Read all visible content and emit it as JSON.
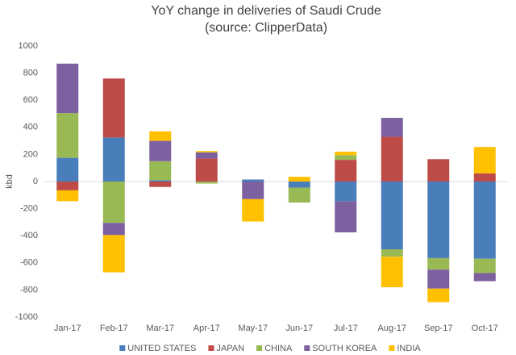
{
  "chart_data": {
    "type": "bar",
    "stacked": true,
    "title": "YoY change in deliveries of Saudi Crude",
    "subtitle": "(source: ClipperData)",
    "y_label": "kbd",
    "categories": [
      "Jan-17",
      "Feb-17",
      "Mar-17",
      "Apr-17",
      "May-17",
      "Jun-17",
      "Jul-17",
      "Aug-17",
      "Sep-17",
      "Oct-17"
    ],
    "series": [
      {
        "name": "UNITED STATES",
        "color": "#4a7ebb",
        "values": [
          175,
          325,
          10,
          0,
          15,
          -45,
          -145,
          -500,
          -565,
          -570
        ]
      },
      {
        "name": "JAPAN",
        "color": "#be4b48",
        "values": [
          -65,
          435,
          -40,
          170,
          0,
          0,
          160,
          330,
          165,
          60
        ]
      },
      {
        "name": "CHINA",
        "color": "#98b954",
        "values": [
          330,
          -305,
          140,
          -15,
          0,
          -110,
          35,
          -55,
          -85,
          -105
        ]
      },
      {
        "name": "SOUTH KOREA",
        "color": "#7d60a0",
        "values": [
          365,
          -90,
          150,
          45,
          -130,
          0,
          -230,
          140,
          -140,
          -60
        ]
      },
      {
        "name": "INDIA",
        "color": "#ffc000",
        "values": [
          -80,
          -275,
          70,
          10,
          -165,
          35,
          25,
          -225,
          -100,
          195
        ]
      }
    ],
    "ylim": [
      -1000,
      1000
    ],
    "yticks": [
      -1000,
      -800,
      -600,
      -400,
      -200,
      0,
      200,
      400,
      600,
      800,
      1000
    ],
    "grid": false,
    "legend": "bottom"
  }
}
